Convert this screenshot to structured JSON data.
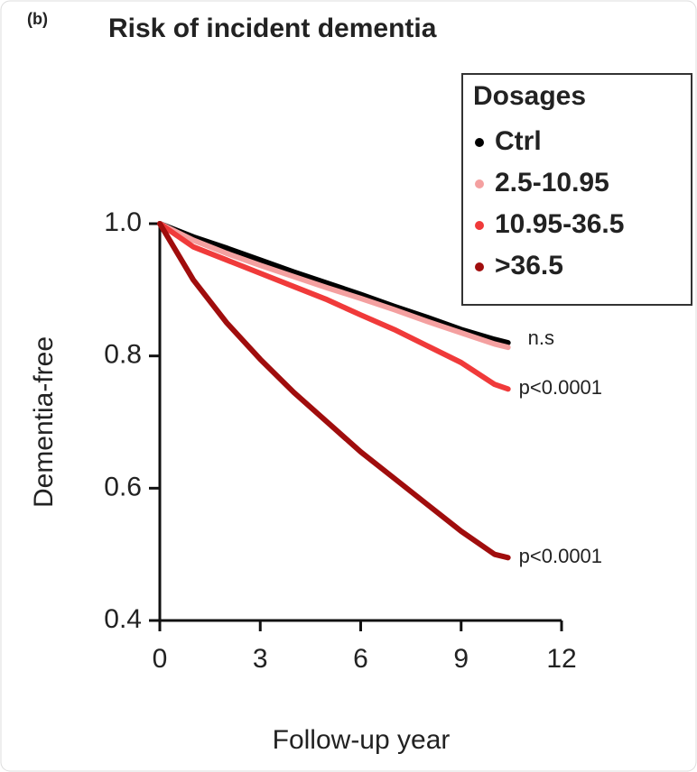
{
  "chart_data": {
    "type": "line",
    "panel_label": "(b)",
    "title": "Risk of incident dementia",
    "x_label": "Follow-up year",
    "y_label": "Dementia-free",
    "legend_title": "Dosages",
    "x": [
      0,
      1,
      2,
      3,
      4,
      5,
      6,
      7,
      8,
      9,
      10,
      10.4
    ],
    "series": [
      {
        "name": "Ctrl",
        "color": "#000000",
        "values": [
          1.0,
          0.98,
          0.963,
          0.945,
          0.927,
          0.91,
          0.893,
          0.875,
          0.858,
          0.84,
          0.825,
          0.82
        ]
      },
      {
        "name": "2.5-10.95",
        "color": "#f4a0a0",
        "values": [
          1.0,
          0.975,
          0.955,
          0.937,
          0.92,
          0.903,
          0.887,
          0.87,
          0.852,
          0.835,
          0.818,
          0.813
        ]
      },
      {
        "name": "10.95-36.5",
        "color": "#f03a3a",
        "values": [
          1.0,
          0.965,
          0.945,
          0.925,
          0.905,
          0.885,
          0.862,
          0.84,
          0.815,
          0.79,
          0.757,
          0.75
        ]
      },
      {
        "name": ">36.5",
        "color": "#a00d0d",
        "values": [
          1.0,
          0.915,
          0.85,
          0.795,
          0.745,
          0.7,
          0.655,
          0.615,
          0.575,
          0.535,
          0.5,
          0.495
        ]
      }
    ],
    "annotations": [
      "n.s",
      "p<0.0001",
      "p<0.0001"
    ],
    "xlim": [
      0,
      12
    ],
    "xticks": [
      0,
      3,
      6,
      9,
      12
    ],
    "ylim": [
      0.4,
      1.0
    ],
    "yticks": [
      {
        "value": 1.0,
        "label": "1.0"
      },
      0.8,
      0.6,
      0.4
    ]
  }
}
